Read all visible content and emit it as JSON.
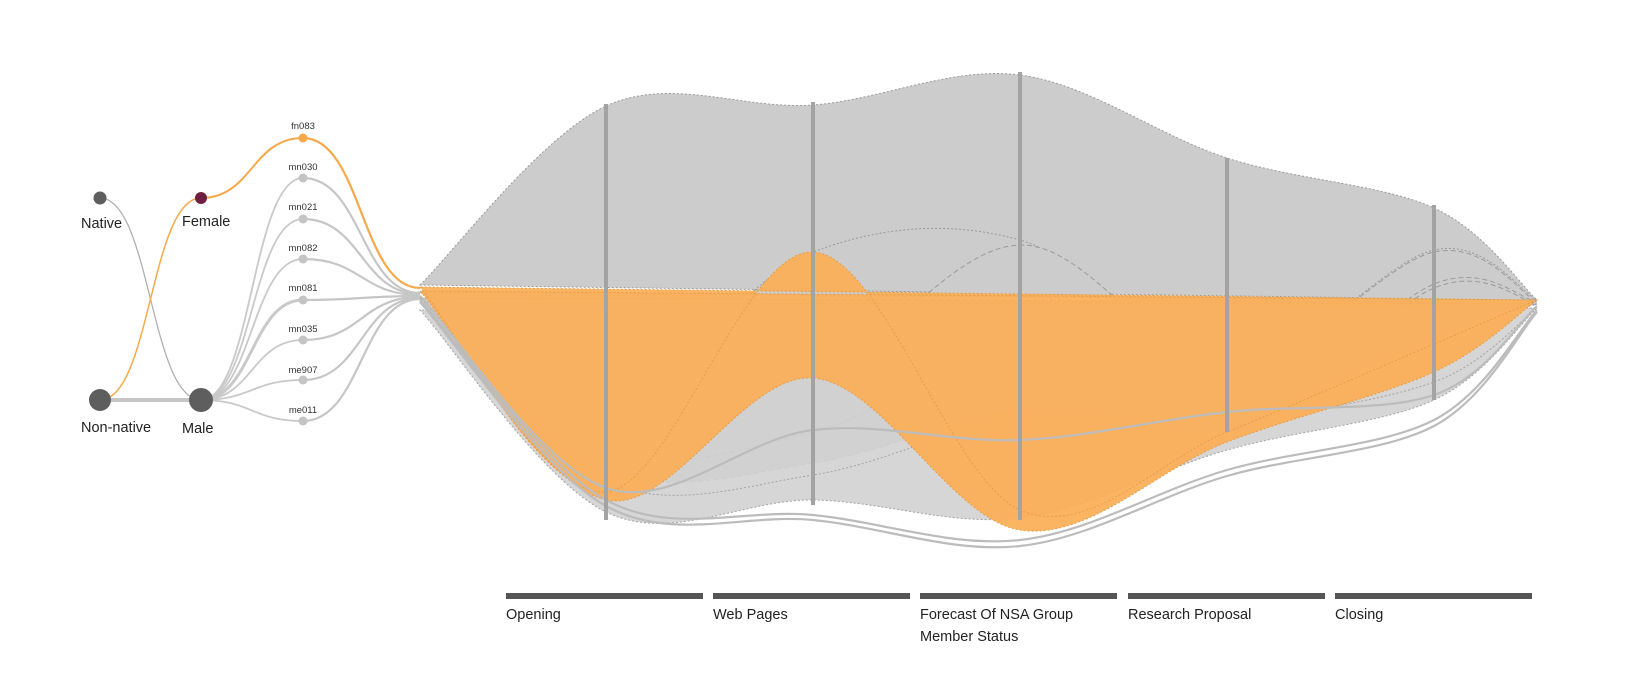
{
  "colors": {
    "highlight": "#f5a94a",
    "highlight_fill": "#fbb05a",
    "band": "#cccccc",
    "node_dark": "#5e5e5e",
    "node_female": "#6e2040",
    "node_light": "#c4c4c4",
    "axis": "#a3a3a3",
    "topic_bar": "#555555",
    "link": "#c6c6c6"
  },
  "group_nodes": {
    "native": "Native",
    "non_native": "Non-native",
    "female": "Female",
    "male": "Male"
  },
  "speakers": [
    "fn083",
    "mn030",
    "mn021",
    "mn082",
    "mn081",
    "mn035",
    "me907",
    "me011"
  ],
  "highlighted_speaker": "fn083",
  "topics": [
    {
      "label_lines": [
        "Opening"
      ]
    },
    {
      "label_lines": [
        "Web Pages"
      ]
    },
    {
      "label_lines": [
        "Forecast Of NSA Group",
        "Member Status"
      ]
    },
    {
      "label_lines": [
        "Research Proposal"
      ]
    },
    {
      "label_lines": [
        "Closing"
      ]
    }
  ]
}
